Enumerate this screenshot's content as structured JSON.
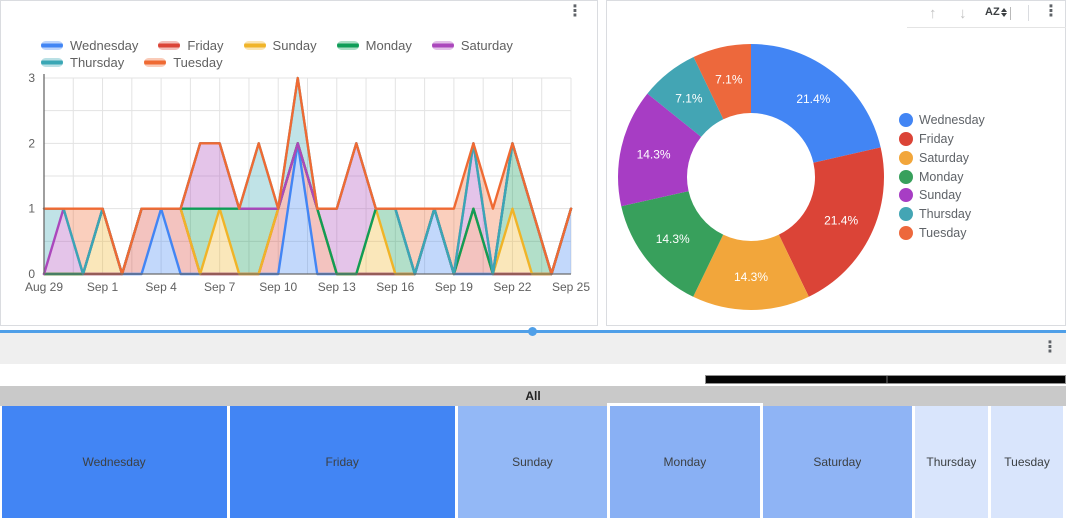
{
  "ui": {
    "menu_glyph": "⋮",
    "right_toolbar": {
      "up_glyph": "↑",
      "down_glyph": "↓",
      "sort_label": "AZ"
    },
    "colors": {
      "card_border": "#dadce0",
      "divider_blue": "#4f9fe8",
      "toolbar_bg": "#efefef",
      "treemap_header_bg": "#c9c9c9",
      "axis_text": "#616161",
      "grid_line": "#e3e3e3",
      "axis_line": "#6b6b6b"
    }
  },
  "chart_data": [
    {
      "type": "area",
      "stacked": true,
      "title": "",
      "xlabel": "",
      "ylabel": "",
      "ylim": [
        0,
        3
      ],
      "y_ticks": [
        0,
        1,
        2,
        3
      ],
      "grid": true,
      "legend_position": "top",
      "x": [
        "Aug 29",
        "Aug 30",
        "Aug 31",
        "Sep 1",
        "Sep 2",
        "Sep 3",
        "Sep 4",
        "Sep 5",
        "Sep 6",
        "Sep 7",
        "Sep 8",
        "Sep 9",
        "Sep 10",
        "Sep 11",
        "Sep 12",
        "Sep 13",
        "Sep 14",
        "Sep 15",
        "Sep 16",
        "Sep 17",
        "Sep 18",
        "Sep 19",
        "Sep 20",
        "Sep 21",
        "Sep 22",
        "Sep 23",
        "Sep 24",
        "Sep 25"
      ],
      "x_tick_labels": [
        "Aug 29",
        "Sep 1",
        "Sep 4",
        "Sep 7",
        "Sep 10",
        "Sep 13",
        "Sep 16",
        "Sep 19",
        "Sep 22",
        "Sep 25"
      ],
      "series": [
        {
          "name": "Wednesday",
          "color": "#4285f4",
          "values": [
            0,
            0,
            0,
            0,
            0,
            0,
            1,
            0,
            0,
            0,
            0,
            0,
            0,
            2,
            0,
            0,
            0,
            0,
            0,
            0,
            1,
            0,
            0,
            0,
            0,
            0,
            0,
            1
          ]
        },
        {
          "name": "Friday",
          "color": "#db4437",
          "values": [
            0,
            0,
            0,
            0,
            0,
            1,
            0,
            1,
            0,
            0,
            0,
            0,
            1,
            0,
            1,
            0,
            0,
            0,
            0,
            0,
            0,
            0,
            1,
            0,
            0,
            0,
            0,
            0
          ]
        },
        {
          "name": "Sunday",
          "color": "#f0b428",
          "values": [
            0,
            0,
            0,
            1,
            0,
            0,
            0,
            0,
            0,
            1,
            0,
            0,
            0,
            0,
            0,
            0,
            0,
            1,
            0,
            0,
            0,
            0,
            0,
            0,
            1,
            0,
            0,
            0
          ]
        },
        {
          "name": "Monday",
          "color": "#0f9d58",
          "values": [
            0,
            0,
            0,
            0,
            0,
            0,
            0,
            0,
            1,
            0,
            1,
            1,
            0,
            0,
            0,
            0,
            0,
            0,
            1,
            0,
            0,
            0,
            0,
            0,
            1,
            1,
            0,
            0
          ]
        },
        {
          "name": "Saturday",
          "color": "#ab47bc",
          "values": [
            0,
            1,
            0,
            0,
            0,
            0,
            0,
            0,
            1,
            1,
            0,
            0,
            0,
            0,
            0,
            1,
            2,
            0,
            0,
            0,
            0,
            0,
            1,
            0,
            0,
            0,
            0,
            0
          ]
        },
        {
          "name": "Thursday",
          "color": "#3aa7b5",
          "values": [
            1,
            0,
            0,
            0,
            0,
            0,
            0,
            0,
            0,
            0,
            0,
            1,
            0,
            1,
            0,
            0,
            0,
            0,
            0,
            0,
            0,
            0,
            0,
            0,
            0,
            0,
            0,
            0
          ]
        },
        {
          "name": "Tuesday",
          "color": "#ef6a33",
          "values": [
            0,
            0,
            1,
            0,
            0,
            0,
            0,
            0,
            0,
            0,
            0,
            0,
            0,
            0,
            0,
            0,
            0,
            0,
            0,
            1,
            0,
            1,
            0,
            1,
            0,
            0,
            0,
            0
          ]
        }
      ]
    },
    {
      "type": "pie",
      "donut": true,
      "title": "",
      "legend_position": "right",
      "labels": [
        "Wednesday",
        "Friday",
        "Saturday",
        "Monday",
        "Sunday",
        "Thursday",
        "Tuesday"
      ],
      "values": [
        21.4,
        21.4,
        14.3,
        14.3,
        14.3,
        7.1,
        7.1
      ],
      "slice_labels": [
        "21.4%",
        "21.4%",
        "14.3%",
        "14.3%",
        "14.3%",
        "7.1%",
        "7.1%"
      ],
      "colors": [
        "#4285f4",
        "#db4437",
        "#f2a63b",
        "#38a05c",
        "#a73dc4",
        "#43a5b4",
        "#ed683c"
      ]
    },
    {
      "type": "treemap",
      "root": "All",
      "labels": [
        "Wednesday",
        "Friday",
        "Sunday",
        "Monday",
        "Saturday",
        "Thursday",
        "Tuesday"
      ],
      "values": [
        21.4,
        21.4,
        14.3,
        14.3,
        14.3,
        7.1,
        7.1
      ],
      "colors": [
        "#4285f4",
        "#4285f4",
        "#93b8f6",
        "#89b0f4",
        "#8fb4f5",
        "#d9e5fc",
        "#d9e5fc"
      ],
      "highlighted": "Monday"
    }
  ]
}
